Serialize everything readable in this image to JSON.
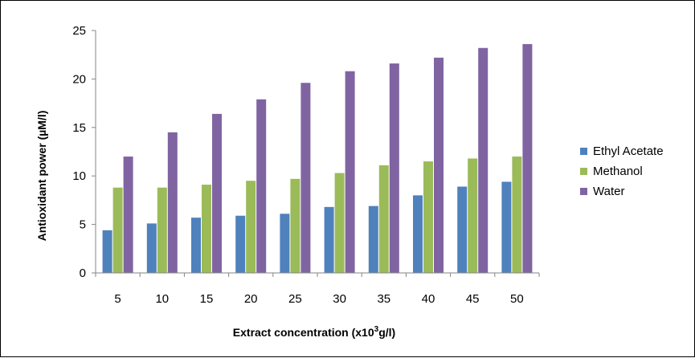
{
  "chart_data": {
    "type": "bar",
    "xlabel": "Extract concentration  (x10",
    "xlabel_sup": "3",
    "xlabel_tail": "g/l)",
    "ylabel": "Antioxidant power  (µM/l)",
    "ylim": [
      0,
      25
    ],
    "yticks": [
      0,
      5,
      10,
      15,
      20,
      25
    ],
    "categories": [
      "5",
      "10",
      "15",
      "20",
      "25",
      "30",
      "35",
      "40",
      "45",
      "50"
    ],
    "grid": false,
    "legend_position": "right",
    "series": [
      {
        "name": "Ethyl Acetate",
        "color": "#4f81bd",
        "values": [
          4.4,
          5.1,
          5.7,
          5.9,
          6.1,
          6.8,
          6.9,
          8.0,
          8.9,
          9.4
        ]
      },
      {
        "name": "Methanol",
        "color": "#9bbb59",
        "values": [
          8.8,
          8.8,
          9.1,
          9.5,
          9.7,
          10.3,
          11.1,
          11.5,
          11.8,
          12.0
        ]
      },
      {
        "name": "Water",
        "color": "#8064a2",
        "values": [
          12.0,
          14.5,
          16.4,
          17.9,
          19.6,
          20.8,
          21.6,
          22.2,
          23.2,
          23.6
        ]
      }
    ]
  }
}
